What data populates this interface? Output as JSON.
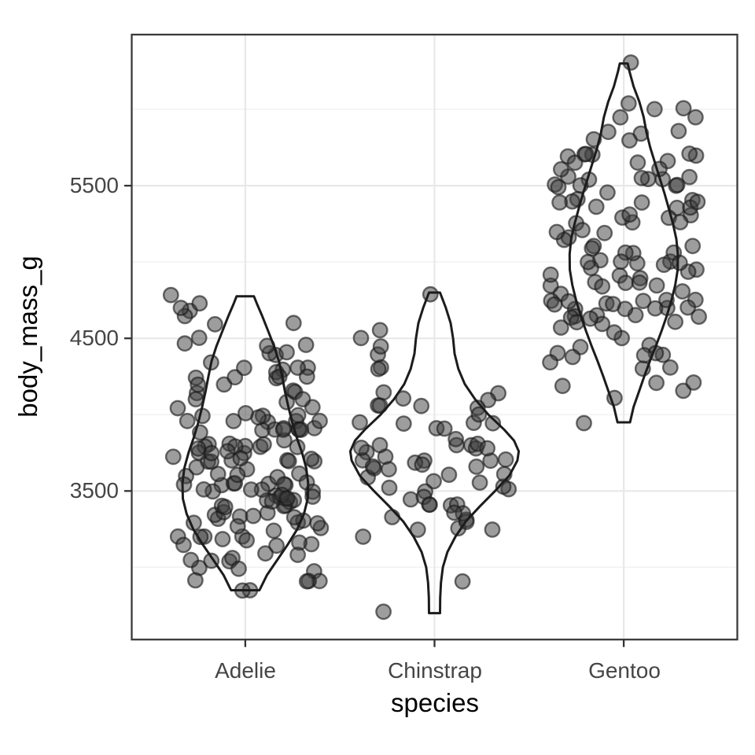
{
  "figure": {
    "background": "#ffffff"
  },
  "style": {
    "violin_stroke": "#1c1c1c",
    "point_fill": "rgba(60,60,60,0.5)",
    "point_stroke": "rgba(25,25,25,0.62)",
    "grid_major": "#e8e8e8",
    "grid_minor": "#f2f2f2",
    "panel_border": "#3a3a3a",
    "panel_background": "#ffffff",
    "tick_color": "#333333",
    "tick_label_color": "#454545",
    "axis_title_color": "#000000"
  },
  "chart_data": {
    "type": "violin",
    "overlay": "jitter-scatter",
    "title": "",
    "xlabel": "species",
    "ylabel": "body_mass_g",
    "categories": [
      "Adelie",
      "Chinstrap",
      "Gentoo"
    ],
    "y_ticks": [
      "3500",
      "4500",
      "5500"
    ],
    "y_tick_values": [
      3500,
      4500,
      5500
    ],
    "y_minor_gridlines": [
      3000,
      4000,
      5000,
      6000
    ],
    "ylim": [
      2520,
      6480
    ],
    "x_positions": [
      1,
      2,
      3
    ],
    "jitter_width": 0.4,
    "grid": "on",
    "legend": "none",
    "series": [
      {
        "name": "Adelie",
        "body_mass_g": [
          3750,
          3800,
          3250,
          3450,
          3650,
          3625,
          4675,
          3475,
          4250,
          3300,
          3700,
          3200,
          3800,
          4400,
          3700,
          3450,
          4500,
          3325,
          4200,
          3400,
          3600,
          3800,
          3950,
          3800,
          3800,
          3550,
          3200,
          3150,
          3950,
          3250,
          3900,
          3300,
          3900,
          3325,
          4150,
          3950,
          3550,
          3300,
          4650,
          3150,
          3900,
          3100,
          4400,
          3000,
          4600,
          3425,
          2975,
          3450,
          4150,
          3500,
          4300,
          3450,
          4050,
          2900,
          3700,
          3550,
          3800,
          2850,
          3750,
          3150,
          4400,
          3600,
          4050,
          2850,
          3950,
          3350,
          4100,
          3050,
          4450,
          3600,
          3900,
          3550,
          4150,
          3700,
          4250,
          3700,
          3900,
          3550,
          4000,
          3200,
          4700,
          3800,
          4200,
          3350,
          3550,
          3800,
          3500,
          3950,
          3600,
          3550,
          4300,
          3400,
          4450,
          3300,
          4300,
          3700,
          4350,
          2900,
          4100,
          3725,
          4725,
          3075,
          4250,
          2925,
          3550,
          3750,
          3900,
          3175,
          4775,
          3825,
          4600,
          3200,
          4275,
          3900,
          4075,
          2900,
          3775,
          3350,
          3325,
          3150,
          3500,
          3450,
          3875,
          3050,
          4000,
          3275,
          4300,
          3050,
          4000,
          3325,
          3500,
          3500,
          4475,
          3425,
          3900,
          3175,
          3975,
          3400,
          4250,
          3400,
          3475,
          3050,
          3725,
          3000,
          3650,
          4250,
          3475,
          3450,
          3750,
          3700,
          4000
        ]
      },
      {
        "name": "Chinstrap",
        "body_mass_g": [
          3500,
          3900,
          3650,
          3525,
          3725,
          3950,
          3250,
          3750,
          4150,
          3700,
          3800,
          3775,
          3700,
          4050,
          3575,
          4050,
          3300,
          3700,
          3450,
          4400,
          3600,
          3400,
          2900,
          3800,
          3300,
          4150,
          3400,
          3800,
          3700,
          4550,
          3200,
          4300,
          3350,
          4100,
          3600,
          3900,
          3850,
          4800,
          2700,
          4500,
          3950,
          3650,
          3550,
          3500,
          3675,
          4450,
          3400,
          4300,
          3250,
          3675,
          3325,
          3950,
          3600,
          4050,
          3350,
          3450,
          3250,
          4050,
          3800,
          3525,
          3950,
          3650,
          3650,
          4000,
          3400,
          3775,
          4100,
          3775
        ]
      },
      {
        "name": "Gentoo",
        "body_mass_g": [
          4500,
          5700,
          4450,
          5700,
          5400,
          4550,
          4800,
          5200,
          4400,
          5150,
          4650,
          5550,
          4650,
          5850,
          4200,
          5850,
          4150,
          6300,
          4800,
          5350,
          5700,
          5000,
          4400,
          5050,
          5000,
          5100,
          4100,
          5650,
          4600,
          5550,
          5250,
          4700,
          5050,
          6050,
          5150,
          5400,
          4950,
          5250,
          4350,
          5350,
          3950,
          5700,
          4300,
          4750,
          5550,
          4900,
          4200,
          5400,
          5100,
          5300,
          4850,
          5300,
          4400,
          5000,
          4900,
          5050,
          4300,
          5000,
          4450,
          5550,
          4200,
          5300,
          4400,
          5650,
          4700,
          5700,
          4650,
          5800,
          4700,
          5550,
          4750,
          5000,
          5100,
          5200,
          4700,
          5800,
          4600,
          6000,
          4750,
          5950,
          4625,
          5450,
          4725,
          5350,
          4750,
          5600,
          4600,
          5300,
          4875,
          5550,
          4950,
          5400,
          4750,
          5650,
          4850,
          5200,
          4925,
          4875,
          4625,
          5250,
          4850,
          5600,
          4975,
          5500,
          4725,
          5500,
          4700,
          5500,
          4575,
          5500,
          5000,
          5950,
          4650,
          5500,
          4375,
          5850,
          4875,
          6000,
          4925,
          5700,
          4725,
          5400,
          5400
        ]
      }
    ],
    "violin_outlines": [
      {
        "name": "Adelie",
        "points": [
          [
            2850,
            0.075
          ],
          [
            2950,
            0.115
          ],
          [
            3050,
            0.17
          ],
          [
            3150,
            0.225
          ],
          [
            3250,
            0.275
          ],
          [
            3350,
            0.31
          ],
          [
            3450,
            0.33
          ],
          [
            3550,
            0.332
          ],
          [
            3650,
            0.322
          ],
          [
            3750,
            0.3
          ],
          [
            3850,
            0.272
          ],
          [
            3950,
            0.248
          ],
          [
            4050,
            0.228
          ],
          [
            4150,
            0.21
          ],
          [
            4250,
            0.195
          ],
          [
            4350,
            0.178
          ],
          [
            4450,
            0.152
          ],
          [
            4550,
            0.12
          ],
          [
            4650,
            0.088
          ],
          [
            4725,
            0.062
          ],
          [
            4775,
            0.046
          ]
        ]
      },
      {
        "name": "Chinstrap",
        "points": [
          [
            2700,
            0.029
          ],
          [
            2800,
            0.03
          ],
          [
            2900,
            0.034
          ],
          [
            3000,
            0.044
          ],
          [
            3100,
            0.068
          ],
          [
            3200,
            0.11
          ],
          [
            3300,
            0.165
          ],
          [
            3400,
            0.24
          ],
          [
            3500,
            0.32
          ],
          [
            3600,
            0.395
          ],
          [
            3700,
            0.438
          ],
          [
            3760,
            0.445
          ],
          [
            3830,
            0.42
          ],
          [
            3900,
            0.37
          ],
          [
            4000,
            0.285
          ],
          [
            4100,
            0.215
          ],
          [
            4200,
            0.16
          ],
          [
            4300,
            0.126
          ],
          [
            4400,
            0.106
          ],
          [
            4500,
            0.098
          ],
          [
            4600,
            0.085
          ],
          [
            4700,
            0.06
          ],
          [
            4800,
            0.029
          ]
        ]
      },
      {
        "name": "Gentoo",
        "points": [
          [
            3950,
            0.033
          ],
          [
            4050,
            0.052
          ],
          [
            4150,
            0.08
          ],
          [
            4250,
            0.108
          ],
          [
            4350,
            0.138
          ],
          [
            4450,
            0.17
          ],
          [
            4550,
            0.2
          ],
          [
            4650,
            0.228
          ],
          [
            4750,
            0.252
          ],
          [
            4850,
            0.272
          ],
          [
            4950,
            0.285
          ],
          [
            5050,
            0.286
          ],
          [
            5150,
            0.278
          ],
          [
            5250,
            0.26
          ],
          [
            5350,
            0.238
          ],
          [
            5450,
            0.215
          ],
          [
            5550,
            0.19
          ],
          [
            5650,
            0.165
          ],
          [
            5750,
            0.14
          ],
          [
            5850,
            0.12
          ],
          [
            5950,
            0.105
          ],
          [
            6050,
            0.082
          ],
          [
            6150,
            0.052
          ],
          [
            6250,
            0.03
          ],
          [
            6300,
            0.021
          ]
        ]
      }
    ]
  }
}
